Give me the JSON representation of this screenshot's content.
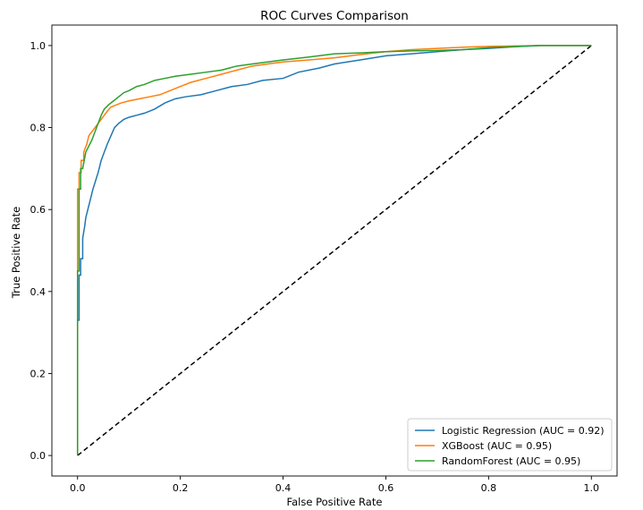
{
  "chart_data": {
    "type": "line",
    "title": "ROC Curves Comparison",
    "xlabel": "False Positive Rate",
    "ylabel": "True Positive Rate",
    "xlim": [
      -0.05,
      1.05
    ],
    "ylim": [
      -0.05,
      1.05
    ],
    "xticks": [
      0.0,
      0.2,
      0.4,
      0.6,
      0.8,
      1.0
    ],
    "yticks": [
      0.0,
      0.2,
      0.4,
      0.6,
      0.8,
      1.0
    ],
    "xtick_labels": [
      "0.0",
      "0.2",
      "0.4",
      "0.6",
      "0.8",
      "1.0"
    ],
    "ytick_labels": [
      "0.0",
      "0.2",
      "0.4",
      "0.6",
      "0.8",
      "1.0"
    ],
    "grid": false,
    "legend_position": "lower-right",
    "series": [
      {
        "name": "Logistic Regression (AUC = 0.92)",
        "color": "#1f77b4",
        "x": [
          0.0,
          0.0,
          0.003,
          0.003,
          0.006,
          0.006,
          0.01,
          0.01,
          0.014,
          0.016,
          0.02,
          0.024,
          0.028,
          0.03,
          0.035,
          0.04,
          0.046,
          0.052,
          0.058,
          0.065,
          0.072,
          0.08,
          0.09,
          0.1,
          0.115,
          0.13,
          0.15,
          0.17,
          0.19,
          0.21,
          0.24,
          0.27,
          0.3,
          0.33,
          0.36,
          0.4,
          0.43,
          0.47,
          0.5,
          0.55,
          0.6,
          0.65,
          0.7,
          0.75,
          0.8,
          0.85,
          0.9,
          1.0
        ],
        "y": [
          0.0,
          0.33,
          0.33,
          0.44,
          0.44,
          0.48,
          0.48,
          0.53,
          0.56,
          0.58,
          0.6,
          0.62,
          0.64,
          0.65,
          0.67,
          0.69,
          0.72,
          0.74,
          0.76,
          0.78,
          0.8,
          0.81,
          0.82,
          0.825,
          0.83,
          0.835,
          0.845,
          0.86,
          0.87,
          0.875,
          0.88,
          0.89,
          0.9,
          0.905,
          0.915,
          0.92,
          0.935,
          0.945,
          0.955,
          0.965,
          0.975,
          0.98,
          0.985,
          0.99,
          0.993,
          0.997,
          1.0,
          1.0
        ]
      },
      {
        "name": "XGBoost (AUC = 0.95)",
        "color": "#ff7f0e",
        "x": [
          0.0,
          0.0,
          0.003,
          0.003,
          0.007,
          0.007,
          0.012,
          0.012,
          0.018,
          0.022,
          0.028,
          0.034,
          0.04,
          0.046,
          0.052,
          0.058,
          0.065,
          0.075,
          0.085,
          0.1,
          0.12,
          0.14,
          0.16,
          0.18,
          0.2,
          0.22,
          0.25,
          0.28,
          0.31,
          0.34,
          0.37,
          0.4,
          0.45,
          0.5,
          0.55,
          0.6,
          0.65,
          0.7,
          0.75,
          0.8,
          0.9,
          1.0
        ],
        "y": [
          0.0,
          0.65,
          0.65,
          0.69,
          0.69,
          0.72,
          0.72,
          0.74,
          0.76,
          0.78,
          0.79,
          0.8,
          0.81,
          0.82,
          0.83,
          0.84,
          0.85,
          0.855,
          0.86,
          0.865,
          0.87,
          0.875,
          0.88,
          0.89,
          0.9,
          0.91,
          0.92,
          0.93,
          0.94,
          0.95,
          0.955,
          0.96,
          0.965,
          0.97,
          0.978,
          0.985,
          0.99,
          0.993,
          0.996,
          0.998,
          1.0,
          1.0
        ]
      },
      {
        "name": "RandomForest (AUC = 0.95)",
        "color": "#2ca02c",
        "x": [
          0.0,
          0.0,
          0.003,
          0.003,
          0.006,
          0.006,
          0.01,
          0.013,
          0.016,
          0.02,
          0.024,
          0.028,
          0.034,
          0.04,
          0.046,
          0.052,
          0.06,
          0.07,
          0.08,
          0.09,
          0.1,
          0.115,
          0.13,
          0.15,
          0.17,
          0.19,
          0.22,
          0.25,
          0.28,
          0.31,
          0.34,
          0.37,
          0.4,
          0.45,
          0.5,
          0.55,
          0.6,
          0.65,
          0.7,
          0.75,
          0.8,
          0.9,
          1.0
        ],
        "y": [
          0.0,
          0.45,
          0.45,
          0.65,
          0.65,
          0.7,
          0.7,
          0.72,
          0.74,
          0.75,
          0.76,
          0.77,
          0.79,
          0.81,
          0.83,
          0.845,
          0.855,
          0.865,
          0.875,
          0.885,
          0.89,
          0.9,
          0.905,
          0.915,
          0.92,
          0.925,
          0.93,
          0.935,
          0.94,
          0.95,
          0.955,
          0.96,
          0.965,
          0.972,
          0.98,
          0.982,
          0.985,
          0.987,
          0.988,
          0.99,
          0.995,
          1.0,
          1.0
        ]
      },
      {
        "name": "diagonal",
        "color": "#000000",
        "dashed": true,
        "x": [
          0.0,
          1.0
        ],
        "y": [
          0.0,
          1.0
        ]
      }
    ]
  }
}
